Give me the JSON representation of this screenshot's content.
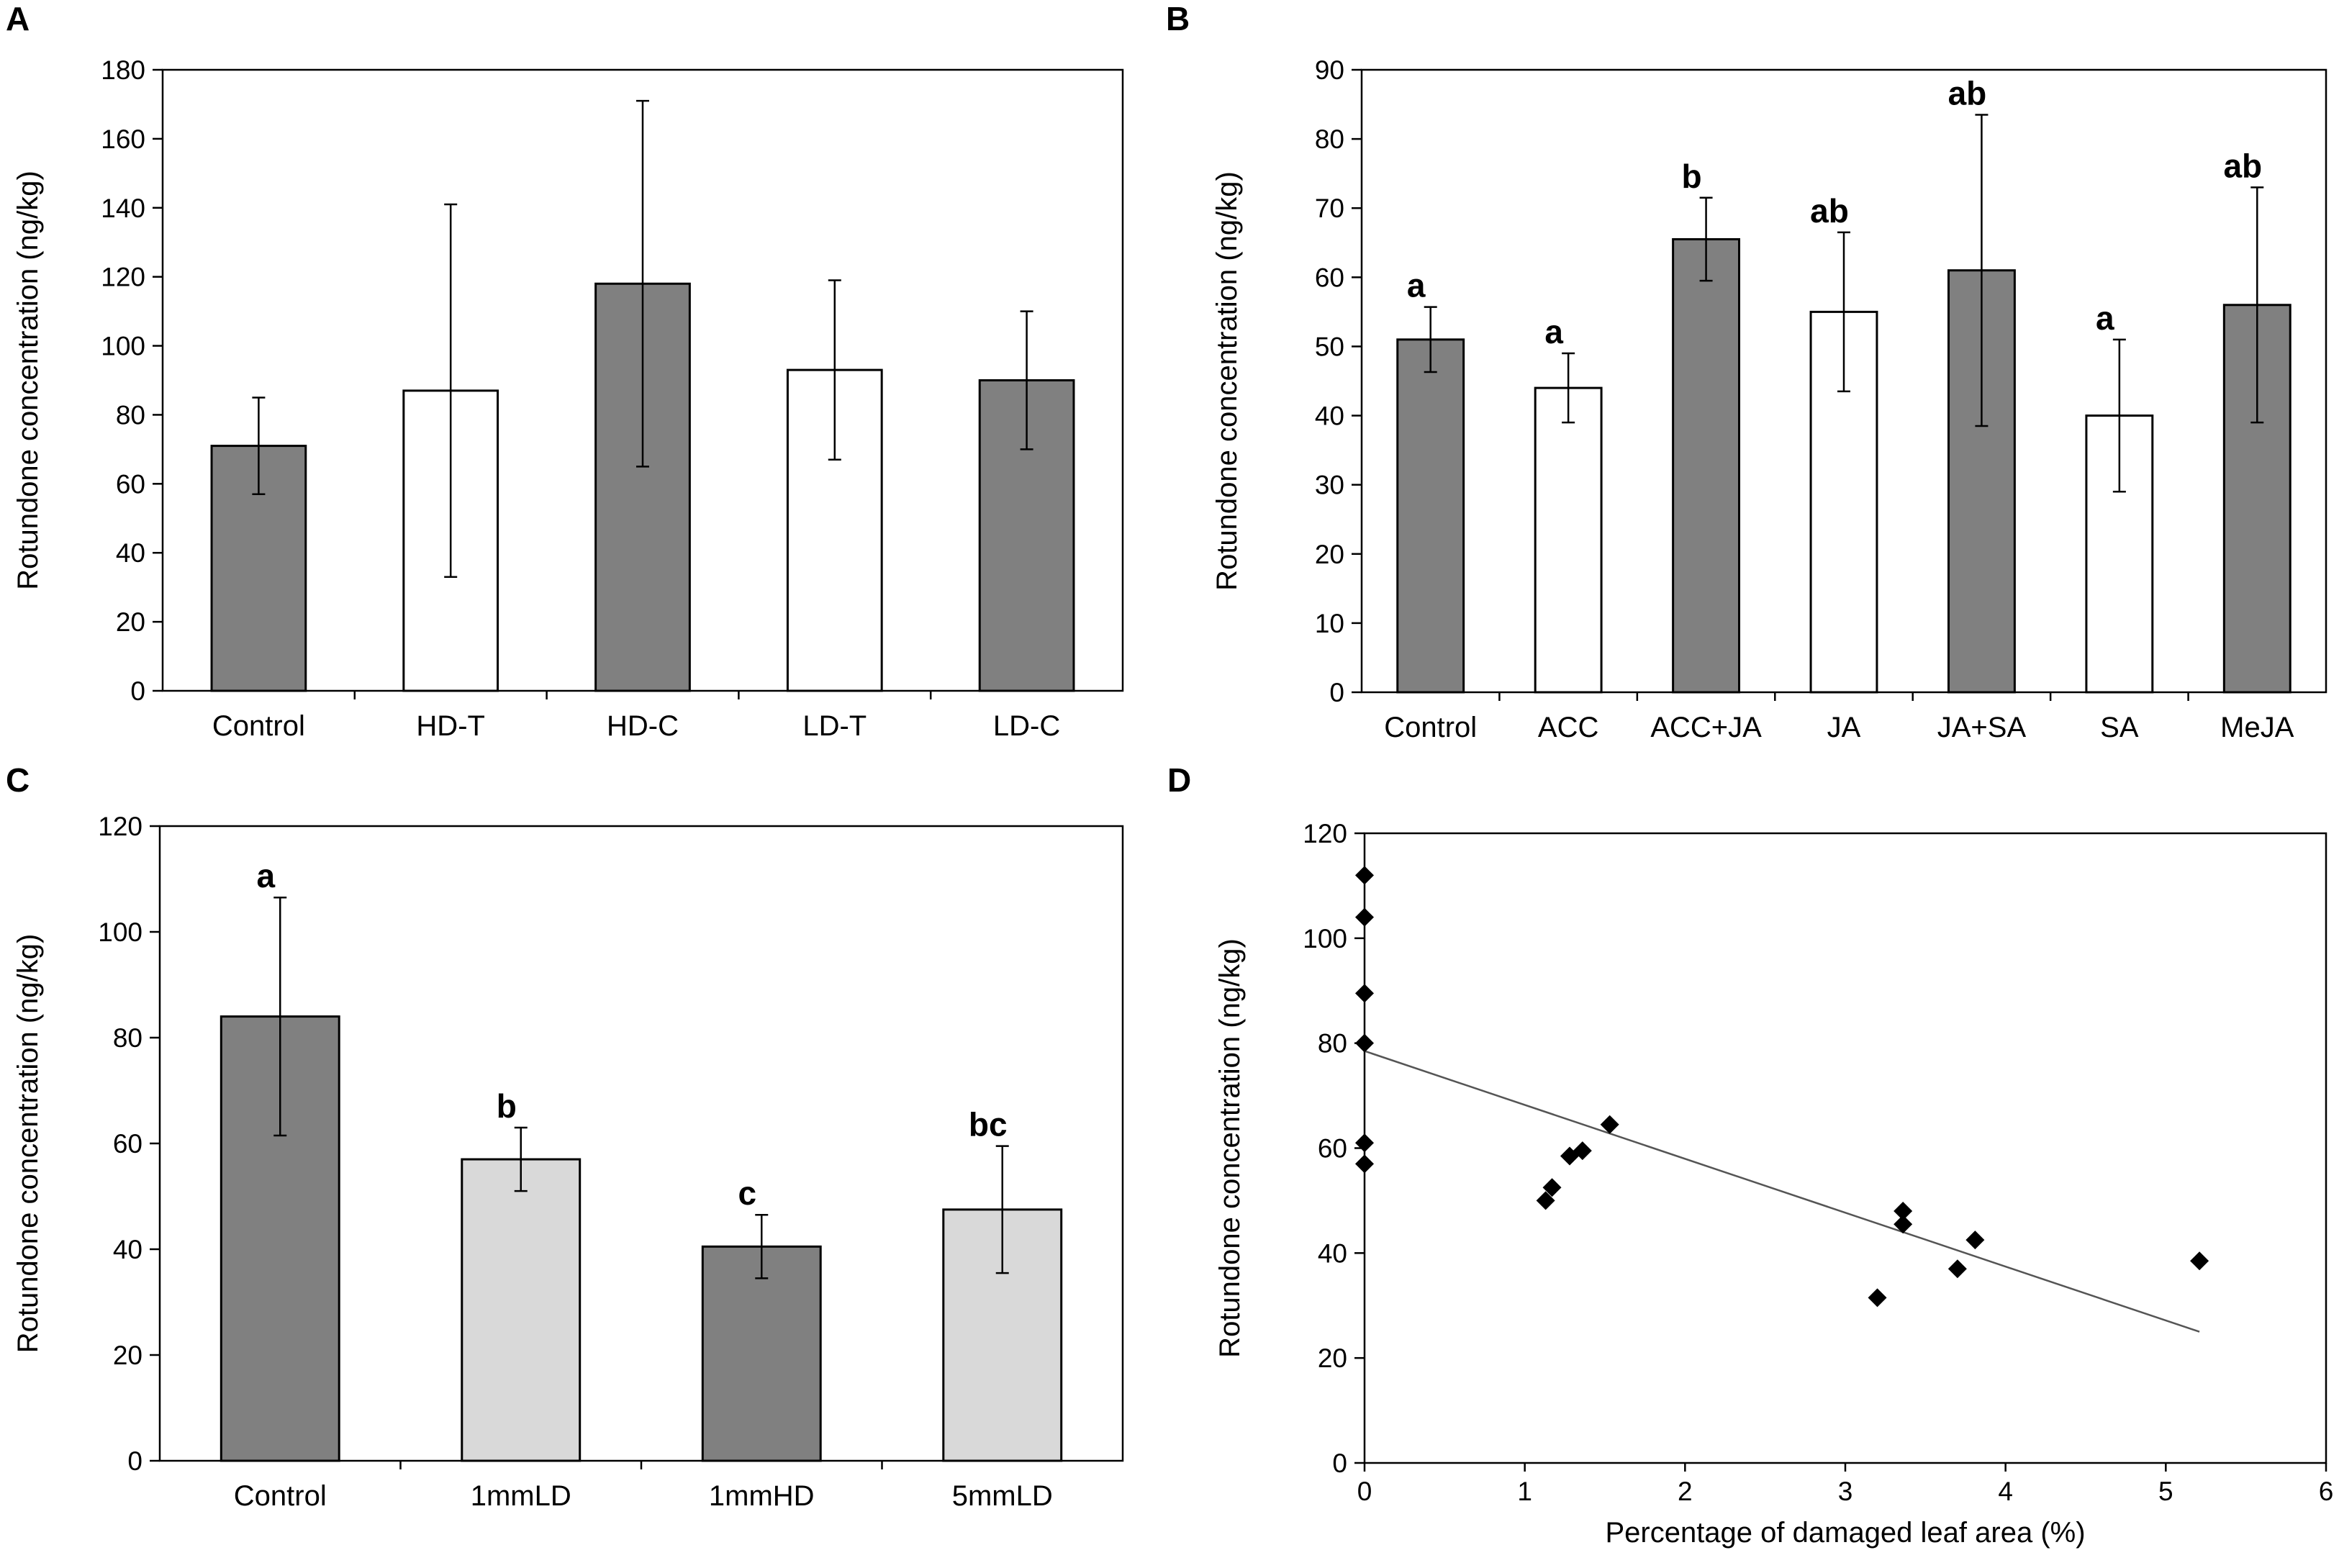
{
  "figure": {
    "panels": [
      "A",
      "B",
      "C",
      "D"
    ]
  },
  "colors": {
    "dark_bar": "#808080",
    "open_bar": "#ffffff",
    "light_bar": "#d9d9d9",
    "axis": "#000000",
    "marker": "#000000",
    "trendline": "#555555"
  },
  "chart_data": [
    {
      "panel": "A",
      "type": "bar",
      "ylabel": "Rotundone concentration (ng/kg)",
      "xlabel": "",
      "ylim": [
        0,
        180
      ],
      "yticks": [
        0,
        20,
        40,
        60,
        80,
        100,
        120,
        140,
        160,
        180
      ],
      "categories": [
        "Control",
        "HD-T",
        "HD-C",
        "LD-T",
        "LD-C"
      ],
      "values": [
        71,
        87,
        118,
        93,
        90
      ],
      "errors": [
        14,
        54,
        53,
        26,
        20
      ],
      "fills": [
        "dark",
        "open",
        "dark",
        "open",
        "dark"
      ],
      "sig_letters": [
        "",
        "",
        "",
        "",
        ""
      ]
    },
    {
      "panel": "B",
      "type": "bar",
      "ylabel": "Rotundone concentration (ng/kg)",
      "xlabel": "",
      "ylim": [
        0,
        90
      ],
      "yticks": [
        0,
        10,
        20,
        30,
        40,
        50,
        60,
        70,
        80,
        90
      ],
      "categories": [
        "Control",
        "ACC",
        "ACC+JA",
        "JA",
        "JA+SA",
        "SA",
        "MeJA"
      ],
      "values": [
        51,
        44,
        65.5,
        55,
        61,
        40,
        56
      ],
      "errors": [
        4.7,
        5,
        6,
        11.5,
        22.5,
        11,
        17
      ],
      "fills": [
        "dark",
        "open",
        "dark",
        "open",
        "dark",
        "open",
        "dark"
      ],
      "sig_letters": [
        "a",
        "a",
        "b",
        "ab",
        "ab",
        "a",
        "ab"
      ]
    },
    {
      "panel": "C",
      "type": "bar",
      "ylabel": "Rotundone concentration (ng/kg)",
      "xlabel": "",
      "ylim": [
        0,
        120
      ],
      "yticks": [
        0,
        20,
        40,
        60,
        80,
        100,
        120
      ],
      "categories": [
        "Control",
        "1mmLD",
        "1mmHD",
        "5mmLD"
      ],
      "values": [
        84,
        57,
        40.5,
        47.5
      ],
      "errors": [
        22.5,
        6,
        6,
        12
      ],
      "fills": [
        "dark",
        "light",
        "dark",
        "light"
      ],
      "sig_letters": [
        "a",
        "b",
        "c",
        "bc"
      ]
    },
    {
      "panel": "D",
      "type": "scatter",
      "ylabel": "Rotundone concentration (ng/kg)",
      "xlabel": "Percentage of damaged leaf area (%)",
      "xlim": [
        0,
        6
      ],
      "ylim": [
        0,
        120
      ],
      "xticks": [
        0,
        1,
        2,
        3,
        4,
        5,
        6
      ],
      "yticks": [
        0,
        20,
        40,
        60,
        80,
        100,
        120
      ],
      "points": [
        {
          "x": 0,
          "y": 112
        },
        {
          "x": 0,
          "y": 104
        },
        {
          "x": 0,
          "y": 89.5
        },
        {
          "x": 0,
          "y": 80
        },
        {
          "x": 0,
          "y": 61
        },
        {
          "x": 0,
          "y": 57
        },
        {
          "x": 1.13,
          "y": 50
        },
        {
          "x": 1.17,
          "y": 52.5
        },
        {
          "x": 1.28,
          "y": 58.5
        },
        {
          "x": 1.36,
          "y": 59.5
        },
        {
          "x": 1.53,
          "y": 64.5
        },
        {
          "x": 3.2,
          "y": 31.5
        },
        {
          "x": 3.36,
          "y": 48
        },
        {
          "x": 3.36,
          "y": 45.5
        },
        {
          "x": 3.7,
          "y": 37
        },
        {
          "x": 3.81,
          "y": 42.5
        },
        {
          "x": 5.21,
          "y": 38.5
        }
      ],
      "trendline": {
        "x0": 0,
        "y0": 78.5,
        "x1": 5.21,
        "y1": 25
      }
    }
  ]
}
